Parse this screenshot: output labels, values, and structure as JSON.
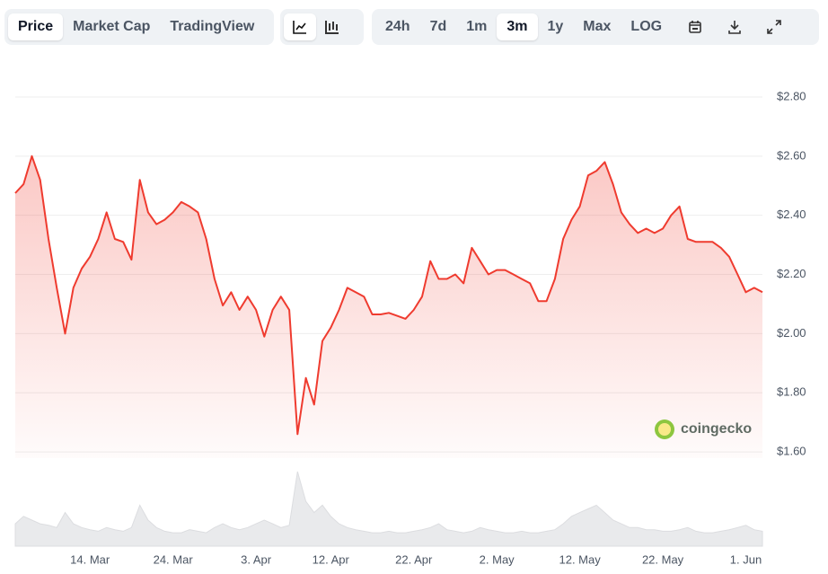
{
  "toolbar": {
    "tabs": [
      "Price",
      "Market Cap",
      "TradingView"
    ],
    "active_tab": 0,
    "ranges": [
      "24h",
      "7d",
      "1m",
      "3m",
      "1y",
      "Max",
      "LOG"
    ],
    "active_range": 3
  },
  "chart_data": {
    "type": "line",
    "watermark": "coingecko",
    "color": "#ef3b2f",
    "categories": [
      null,
      null,
      null,
      null,
      null,
      null,
      null,
      null,
      null,
      "14. Mar",
      null,
      null,
      null,
      null,
      null,
      null,
      null,
      null,
      null,
      "24. Mar",
      null,
      null,
      null,
      null,
      null,
      null,
      null,
      null,
      null,
      "3. Apr",
      null,
      null,
      null,
      null,
      null,
      null,
      null,
      null,
      "12. Apr",
      null,
      null,
      null,
      null,
      null,
      null,
      null,
      null,
      null,
      "22. Apr",
      null,
      null,
      null,
      null,
      null,
      null,
      null,
      null,
      null,
      "2. May",
      null,
      null,
      null,
      null,
      null,
      null,
      null,
      null,
      null,
      "12. May",
      null,
      null,
      null,
      null,
      null,
      null,
      null,
      null,
      null,
      "22. May",
      null,
      null,
      null,
      null,
      null,
      null,
      null,
      null,
      null,
      "1. Jun",
      null,
      null
    ],
    "values": [
      2.475,
      2.505,
      2.6,
      2.52,
      2.32,
      2.155,
      2.0,
      2.155,
      2.22,
      2.26,
      2.32,
      2.41,
      2.32,
      2.31,
      2.25,
      2.52,
      2.41,
      2.37,
      2.385,
      2.41,
      2.445,
      2.43,
      2.41,
      2.32,
      2.185,
      2.095,
      2.14,
      2.08,
      2.125,
      2.08,
      1.99,
      2.08,
      2.125,
      2.08,
      1.66,
      1.85,
      1.76,
      1.975,
      2.02,
      2.08,
      2.155,
      2.14,
      2.125,
      2.065,
      2.065,
      2.07,
      2.06,
      2.05,
      2.08,
      2.125,
      2.245,
      2.185,
      2.185,
      2.2,
      2.17,
      2.29,
      2.245,
      2.2,
      2.215,
      2.215,
      2.2,
      2.185,
      2.17,
      2.11,
      2.11,
      2.185,
      2.32,
      2.385,
      2.43,
      2.535,
      2.55,
      2.58,
      2.505,
      2.41,
      2.37,
      2.34,
      2.355,
      2.34,
      2.355,
      2.4,
      2.43,
      2.32,
      2.31,
      2.31,
      2.31,
      2.29,
      2.26,
      2.2,
      2.14,
      2.155,
      2.14
    ],
    "volume": [
      30,
      40,
      35,
      30,
      28,
      25,
      45,
      30,
      25,
      22,
      20,
      25,
      22,
      20,
      25,
      55,
      35,
      25,
      20,
      18,
      18,
      22,
      20,
      18,
      25,
      30,
      25,
      22,
      25,
      30,
      35,
      30,
      25,
      28,
      100,
      60,
      45,
      55,
      40,
      30,
      25,
      22,
      20,
      18,
      18,
      20,
      18,
      18,
      20,
      22,
      25,
      30,
      22,
      20,
      18,
      20,
      25,
      22,
      20,
      18,
      18,
      20,
      18,
      18,
      20,
      22,
      30,
      40,
      45,
      50,
      55,
      45,
      35,
      30,
      25,
      25,
      22,
      22,
      20,
      20,
      22,
      25,
      20,
      18,
      18,
      20,
      22,
      25,
      28,
      22,
      20
    ],
    "volume_ylim": [
      0,
      100
    ],
    "ylim": [
      1.579,
      2.885
    ],
    "yticks": [
      {
        "value": 1.6,
        "label": "$1.60"
      },
      {
        "value": 1.8,
        "label": "$1.80"
      },
      {
        "value": 2.0,
        "label": "$2.00"
      },
      {
        "value": 2.2,
        "label": "$2.20"
      },
      {
        "value": 2.4,
        "label": "$2.40"
      },
      {
        "value": 2.6,
        "label": "$2.60"
      },
      {
        "value": 2.8,
        "label": "$2.80"
      }
    ],
    "grid": true
  }
}
